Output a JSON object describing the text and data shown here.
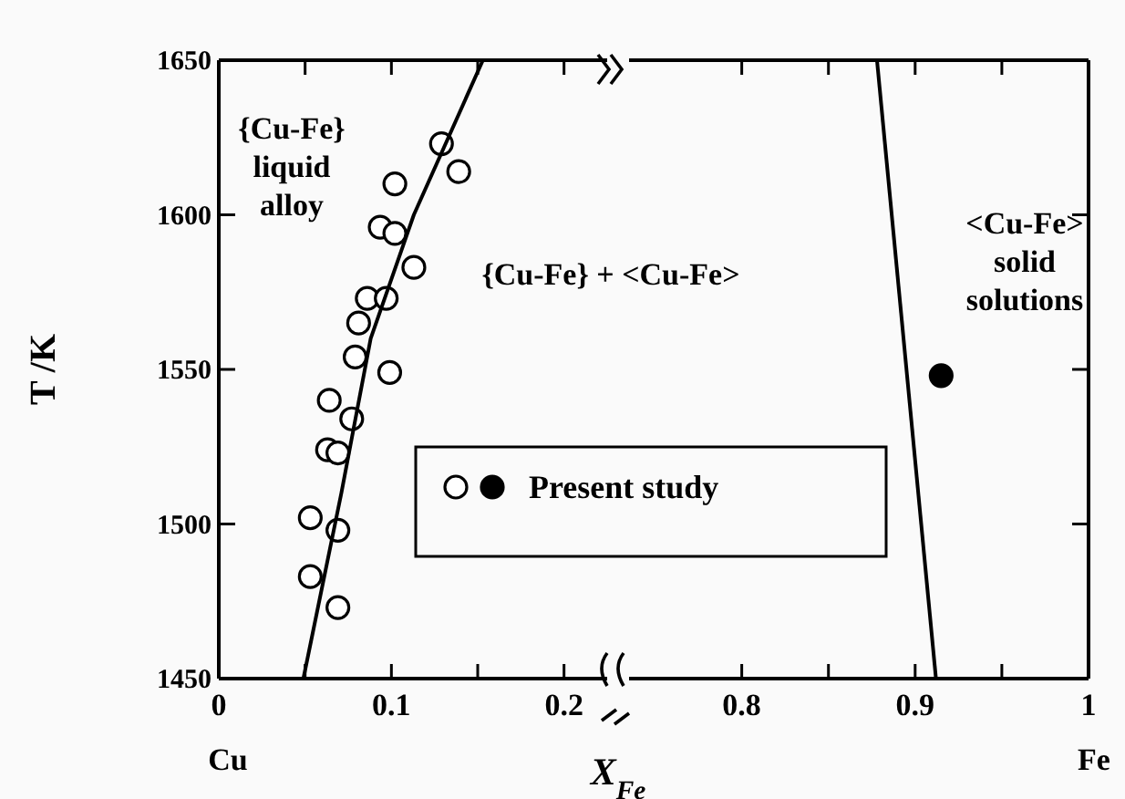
{
  "chart_data": [
    {
      "type": "scatter",
      "ylabel": "T /K",
      "xlabel": "X$_{Fe}$",
      "xlim": [
        0,
        0.225
      ],
      "ylim": [
        1450,
        1650
      ],
      "xticks": [
        0,
        {
          "value": 0.05,
          "label": null
        },
        0.1,
        {
          "value": 0.15,
          "label": null
        },
        0.2
      ],
      "yticks": [
        1450,
        1500,
        1550,
        1600,
        1650
      ],
      "legend": "bottom right",
      "annotations": [
        "{Cu-Fe}\nliquid\nalloy",
        "{Cu-Fe} + <Cu-Fe>",
        "Cu"
      ],
      "series": [
        {
          "name": "Present study",
          "marker": "circle",
          "color": "#000000",
          "x": [
            0.129,
            0.139,
            0.102,
            0.0935,
            0.102,
            0.113,
            0.086,
            0.097,
            0.081,
            0.079,
            0.099,
            0.064,
            0.077,
            0.063,
            0.069,
            0.053,
            0.069,
            0.053,
            0.069
          ],
          "values": [
            1623,
            1614,
            1610,
            1596,
            1594,
            1583,
            1573,
            1573,
            1565,
            1554,
            1549,
            1540,
            1534,
            1524,
            1523,
            1502,
            1498,
            1483,
            1473
          ]
        },
        {
          "type": "line",
          "color": "#000000",
          "x": [
            0.049,
            0.071,
            0.088,
            0.113,
            0.153
          ],
          "values": [
            1450,
            1510,
            1560,
            1600,
            1650
          ]
        }
      ]
    },
    {
      "type": "scatter",
      "xlim": [
        0.735,
        1
      ],
      "ylim": [
        1450,
        1650
      ],
      "xticks": [
        0.8,
        {
          "value": 0.85,
          "label": null
        },
        0.9,
        {
          "value": 0.95,
          "label": null
        },
        1
      ],
      "yticks": [
        1450,
        1500,
        1550,
        1600,
        1650
      ],
      "tick_labels": "x",
      "annotations": [
        "<Cu-Fe>\nsolid\nsolutions",
        "Fe"
      ],
      "series": [
        {
          "type": "line",
          "color": "#000000",
          "x": [
            0.878,
            0.912
          ],
          "values": [
            1650,
            1450
          ]
        },
        {
          "name": "Present study",
          "marker": "circle",
          "color": "#000000",
          "x": [
            0.915
          ],
          "values": [
            1548
          ]
        }
      ]
    }
  ]
}
